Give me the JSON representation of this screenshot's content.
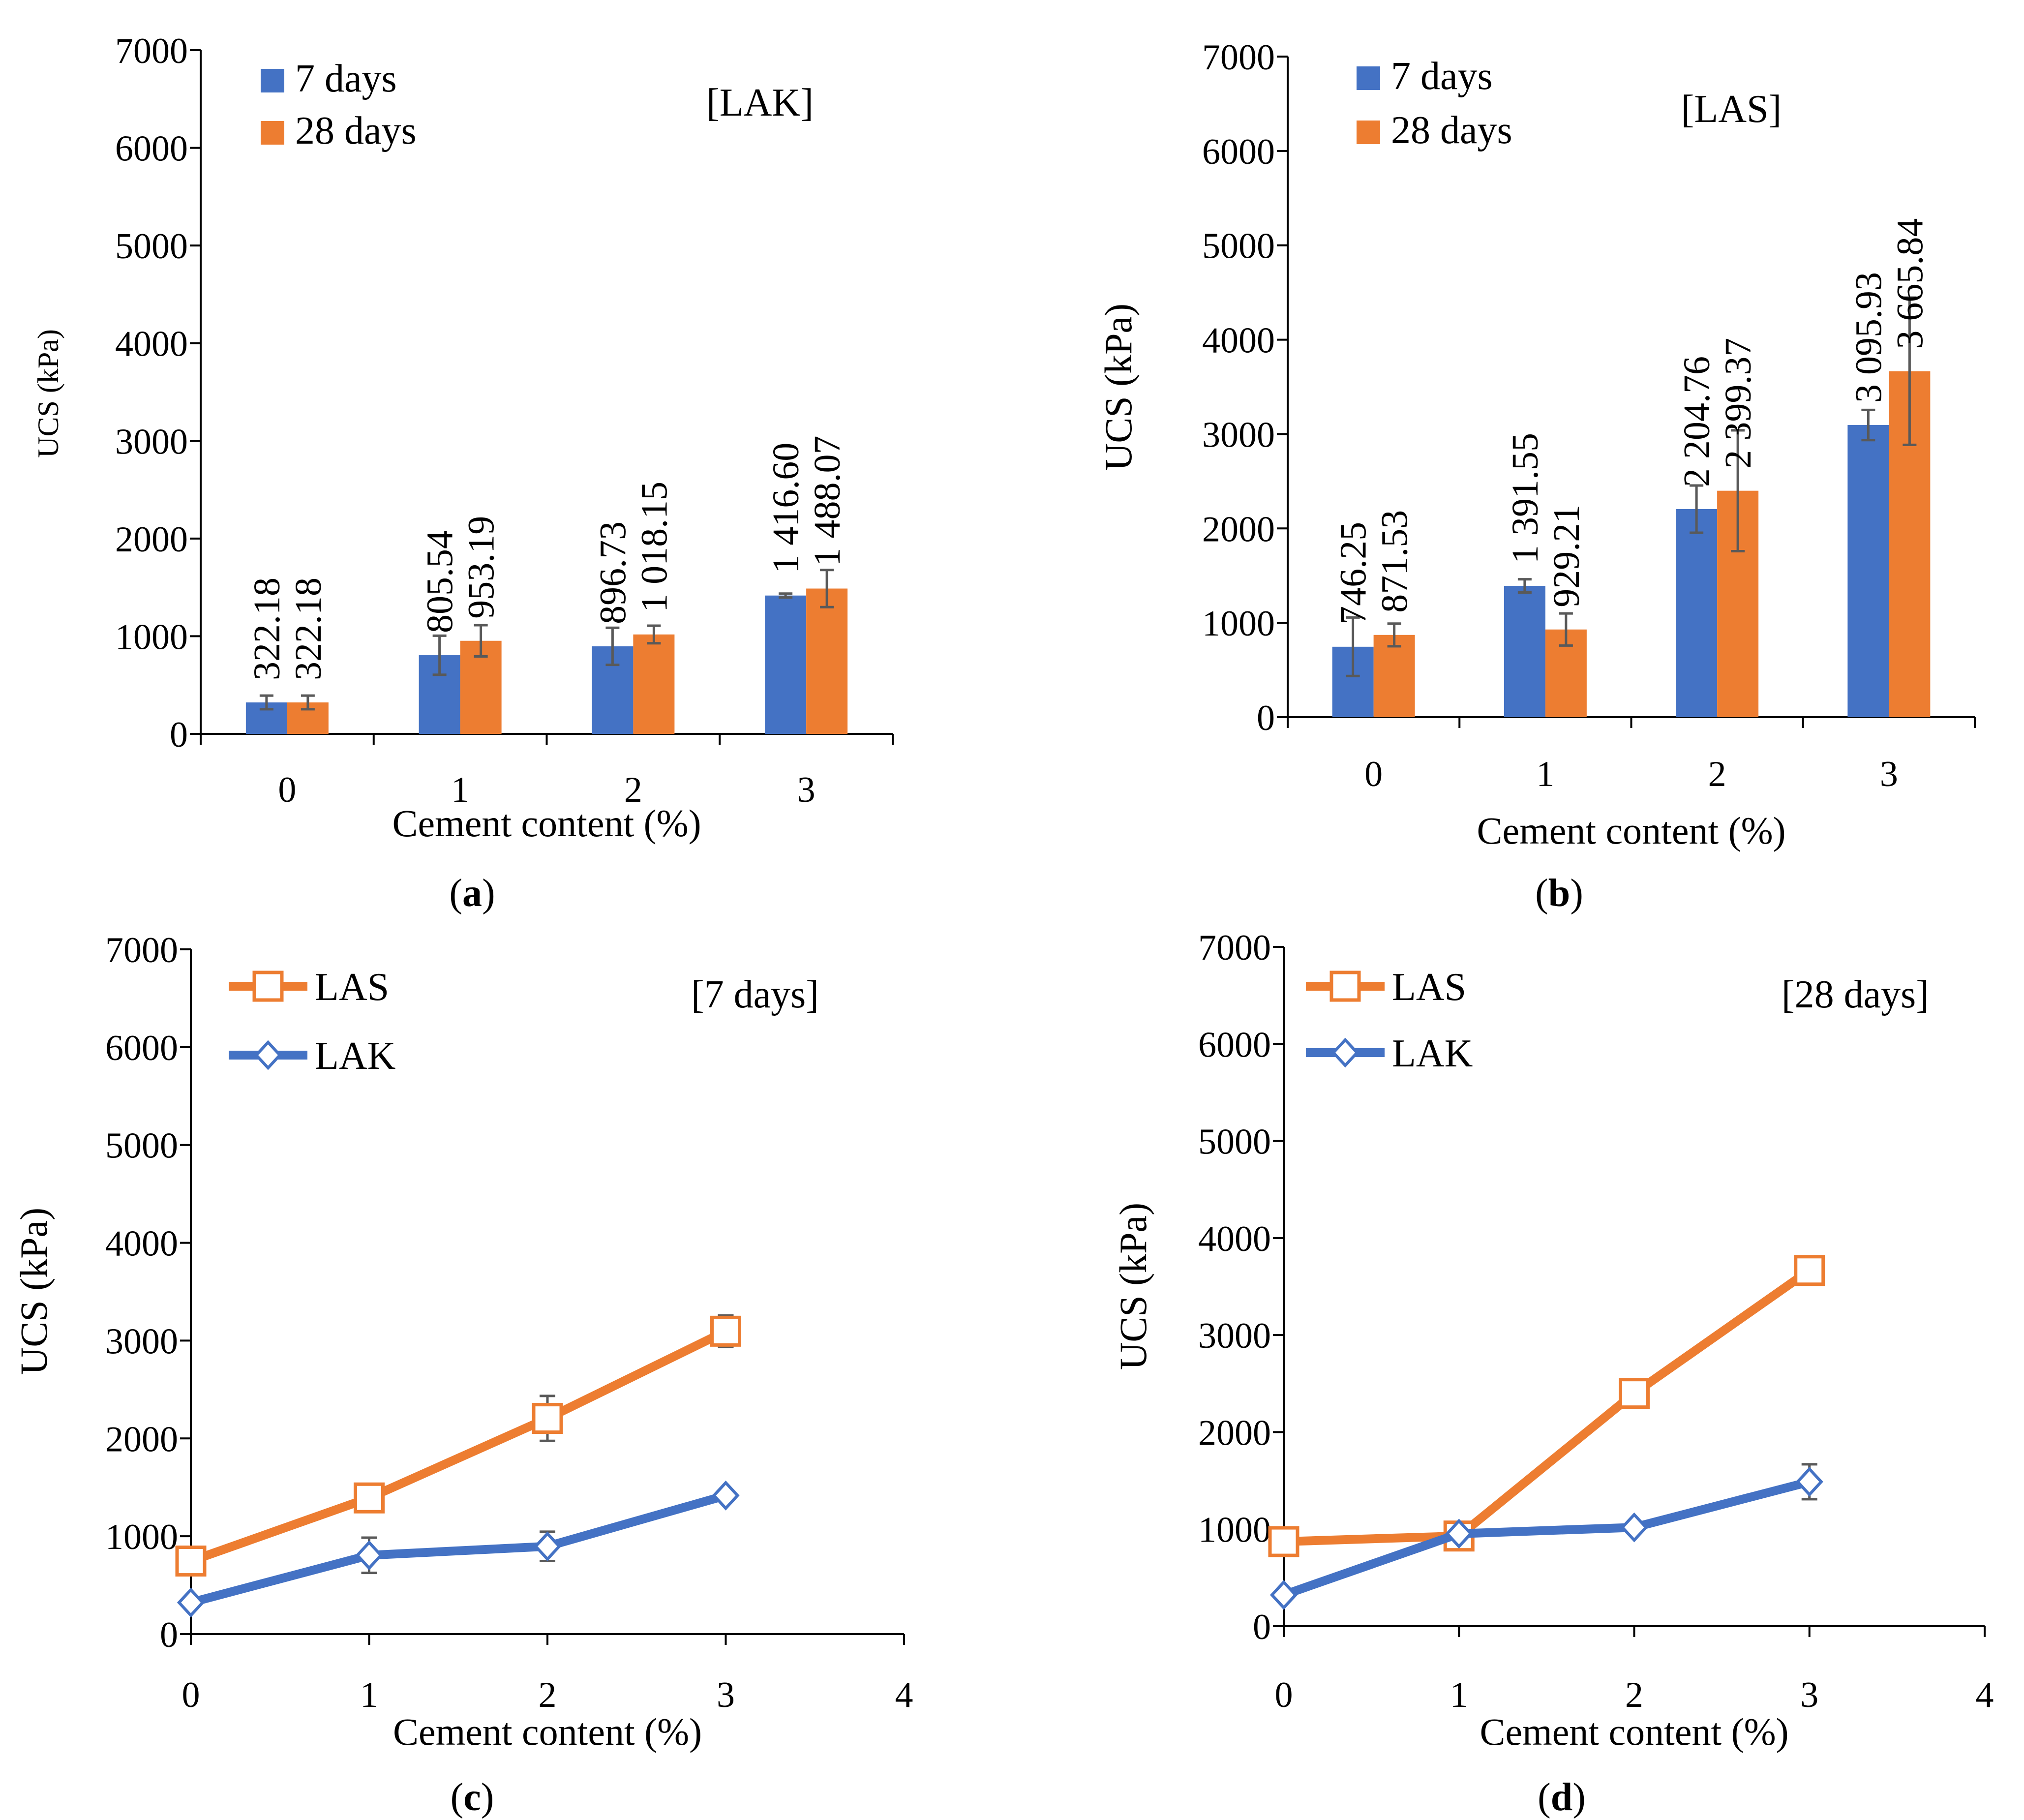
{
  "colors": {
    "series_7days": "#4472C4",
    "series_28days": "#ED7D31",
    "axis": "#000000",
    "errorbar": "#595959"
  },
  "chart_data": [
    {
      "type": "bar",
      "caption": "(a)",
      "caption_letter": "a",
      "tag": "[LAK]",
      "xlabel": "Cement content (%)",
      "ylabel": "UCS (kPa)",
      "ylim": [
        0,
        7000
      ],
      "yticks": [
        "0",
        "1000",
        "2000",
        "3000",
        "4000",
        "5000",
        "6000",
        "7000"
      ],
      "categories": [
        "0",
        "1",
        "2",
        "3"
      ],
      "series": [
        {
          "name": "7 days",
          "values": [
            322.18,
            805.54,
            896.73,
            1416.6
          ],
          "errors": [
            70,
            200,
            190,
            20
          ],
          "labels": [
            "322.18",
            "805.54",
            "896.73",
            "1 416.60"
          ]
        },
        {
          "name": "28 days",
          "values": [
            322.18,
            953.19,
            1018.15,
            1488.07
          ],
          "errors": [
            70,
            160,
            90,
            190
          ],
          "labels": [
            "322.18",
            "953.19",
            "1 018.15",
            "1 488.07"
          ]
        }
      ]
    },
    {
      "type": "bar",
      "caption": "(b)",
      "caption_letter": "b",
      "tag": "[LAS]",
      "xlabel": "Cement content (%)",
      "ylabel": "UCS (kPa)",
      "ylim": [
        0,
        7000
      ],
      "yticks": [
        "0",
        "1000",
        "2000",
        "3000",
        "4000",
        "5000",
        "6000",
        "7000"
      ],
      "categories": [
        "0",
        "1",
        "2",
        "3"
      ],
      "series": [
        {
          "name": "7 days",
          "values": [
            746.25,
            1391.55,
            2204.76,
            3095.93
          ],
          "errors": [
            310,
            70,
            250,
            160
          ],
          "labels": [
            "746.25",
            "1 391.55",
            "2 204.76",
            "3 095.93"
          ]
        },
        {
          "name": "28 days",
          "values": [
            871.53,
            929.21,
            2399.37,
            3665.84
          ],
          "errors": [
            120,
            170,
            640,
            780
          ],
          "labels": [
            "871.53",
            "929.21",
            "2 399.37",
            "3 665.84"
          ]
        }
      ]
    },
    {
      "type": "line",
      "caption": "(c)",
      "caption_letter": "c",
      "tag": "[7 days]",
      "xlabel": "Cement content (%)",
      "ylabel": "UCS (kPa)",
      "xlim": [
        0,
        4
      ],
      "ylim": [
        0,
        7000
      ],
      "xticks": [
        "0",
        "1",
        "2",
        "3",
        "4"
      ],
      "yticks": [
        "0",
        "1000",
        "2000",
        "3000",
        "4000",
        "5000",
        "6000",
        "7000"
      ],
      "series": [
        {
          "name": "LAS",
          "marker": "square",
          "x": [
            0,
            1,
            2,
            3
          ],
          "y": [
            746.25,
            1391.55,
            2204.76,
            3095.93
          ],
          "errors": [
            0,
            0,
            230,
            160
          ]
        },
        {
          "name": "LAK",
          "marker": "diamond",
          "x": [
            0,
            1,
            2,
            3
          ],
          "y": [
            322.18,
            805.54,
            896.73,
            1416.6
          ],
          "errors": [
            0,
            180,
            150,
            0
          ]
        }
      ]
    },
    {
      "type": "line",
      "caption": "(d)",
      "caption_letter": "d",
      "tag": "[28 days]",
      "xlabel": "Cement content (%)",
      "ylabel": "UCS (kPa)",
      "xlim": [
        0,
        4
      ],
      "ylim": [
        0,
        7000
      ],
      "xticks": [
        "0",
        "1",
        "2",
        "3",
        "4"
      ],
      "yticks": [
        "0",
        "1000",
        "2000",
        "3000",
        "4000",
        "5000",
        "6000",
        "7000"
      ],
      "series": [
        {
          "name": "LAS",
          "marker": "square",
          "x": [
            0,
            1,
            2,
            3
          ],
          "y": [
            871.53,
            929.21,
            2399.37,
            3665.84
          ],
          "errors": [
            0,
            0,
            0,
            120
          ]
        },
        {
          "name": "LAK",
          "marker": "diamond",
          "x": [
            0,
            1,
            2,
            3
          ],
          "y": [
            322.18,
            953.19,
            1018.15,
            1488.07
          ],
          "errors": [
            0,
            0,
            0,
            180
          ]
        }
      ]
    }
  ]
}
